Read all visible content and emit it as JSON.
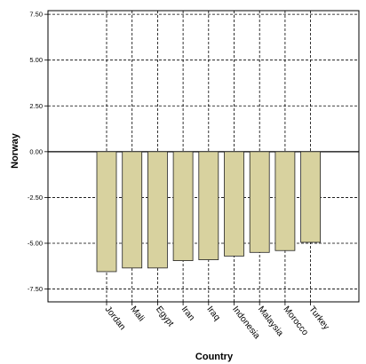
{
  "chart_data": {
    "type": "bar",
    "xlabel": "Country",
    "ylabel": "Norway",
    "categories": [
      "Jordan",
      "Mali",
      "Egypt",
      "Iran",
      "Iraq",
      "Indonesia",
      "Malaysia",
      "Morocco",
      "Turkey"
    ],
    "values": [
      -6.55,
      -6.35,
      -6.35,
      -5.95,
      -5.9,
      -5.7,
      -5.5,
      -5.4,
      -4.95
    ],
    "ylim": [
      -8.2,
      7.7
    ],
    "yticks": [
      7.5,
      5.0,
      2.5,
      0.0,
      -2.5,
      -5.0,
      -7.5
    ],
    "ytick_labels": [
      "7.50",
      "5.00",
      "2.50",
      "0.00",
      "-2.50",
      "-5.00",
      "-7.50"
    ],
    "grid": true,
    "colors": {
      "bar_fill": "#d8d29f",
      "bar_stroke": "#222222",
      "grid": "#000000"
    }
  }
}
